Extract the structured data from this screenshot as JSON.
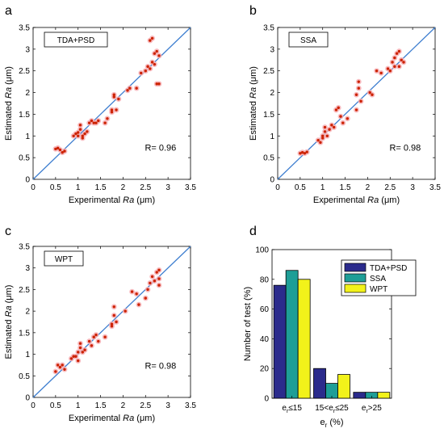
{
  "panels": {
    "a": {
      "letter": "a",
      "legend": "TDA+PSD",
      "r_text": "R= 0.96"
    },
    "b": {
      "letter": "b",
      "legend": "SSA",
      "r_text": "R= 0.98"
    },
    "c": {
      "letter": "c",
      "legend": "WPT",
      "r_text": "R= 0.98"
    },
    "d": {
      "letter": "d"
    }
  },
  "colors": {
    "point_fill": "#cc2200",
    "point_halo": "#f7b0b6",
    "diag_line": "#3f7fd0",
    "bar1": "#2b2b8c",
    "bar2": "#1e9e97",
    "bar3": "#f2f21a"
  },
  "chart_data": [
    {
      "id": "a",
      "type": "scatter",
      "xlabel_prefix": "Experimental",
      "xlabel_italic": "Ra",
      "xlabel_suffix": "(μm)",
      "ylabel_prefix": "Estimated",
      "ylabel_italic": "Ra",
      "ylabel_suffix": "(μm)",
      "xlim": [
        0,
        3.5
      ],
      "ylim": [
        0,
        3.5
      ],
      "xticks": [
        "0",
        "0.5",
        "1",
        "1.5",
        "2",
        "2.5",
        "3",
        "3.5"
      ],
      "yticks": [
        "0",
        "0.5",
        "1",
        "1.5",
        "2",
        "2.5",
        "3",
        "3.5"
      ],
      "legend": "TDA+PSD",
      "annotation": "R= 0.96",
      "points": [
        [
          0.5,
          0.7
        ],
        [
          0.55,
          0.72
        ],
        [
          0.6,
          0.68
        ],
        [
          0.65,
          0.62
        ],
        [
          0.7,
          0.65
        ],
        [
          0.9,
          1.0
        ],
        [
          0.95,
          1.05
        ],
        [
          1.0,
          1.0
        ],
        [
          1.0,
          1.08
        ],
        [
          1.05,
          1.15
        ],
        [
          1.05,
          1.25
        ],
        [
          1.1,
          1.0
        ],
        [
          1.1,
          0.95
        ],
        [
          1.15,
          1.05
        ],
        [
          1.2,
          1.1
        ],
        [
          1.25,
          1.3
        ],
        [
          1.3,
          1.35
        ],
        [
          1.35,
          1.3
        ],
        [
          1.4,
          1.3
        ],
        [
          1.45,
          1.35
        ],
        [
          1.6,
          1.3
        ],
        [
          1.65,
          1.4
        ],
        [
          1.75,
          1.55
        ],
        [
          1.75,
          1.6
        ],
        [
          1.8,
          1.9
        ],
        [
          1.8,
          1.95
        ],
        [
          1.85,
          1.6
        ],
        [
          1.9,
          1.85
        ],
        [
          2.1,
          2.05
        ],
        [
          2.15,
          2.1
        ],
        [
          2.3,
          2.1
        ],
        [
          2.4,
          2.45
        ],
        [
          2.5,
          2.5
        ],
        [
          2.55,
          2.6
        ],
        [
          2.6,
          2.55
        ],
        [
          2.6,
          3.2
        ],
        [
          2.65,
          3.25
        ],
        [
          2.7,
          2.9
        ],
        [
          2.7,
          2.65
        ],
        [
          2.75,
          2.95
        ],
        [
          2.75,
          2.2
        ],
        [
          2.8,
          2.85
        ],
        [
          2.8,
          2.2
        ],
        [
          2.65,
          2.7
        ]
      ]
    },
    {
      "id": "b",
      "type": "scatter",
      "xlabel_prefix": "Experimental",
      "xlabel_italic": "Ra",
      "xlabel_suffix": "(μm)",
      "ylabel_prefix": "Estimated",
      "ylabel_italic": "Ra",
      "ylabel_suffix": "(μm)",
      "xlim": [
        0,
        3.5
      ],
      "ylim": [
        0,
        3.5
      ],
      "xticks": [
        "0",
        "0.5",
        "1",
        "1.5",
        "2",
        "2.5",
        "3",
        "3.5"
      ],
      "yticks": [
        "0",
        "0.5",
        "1",
        "1.5",
        "2",
        "2.5",
        "3",
        "3.5"
      ],
      "legend": "SSA",
      "annotation": "R= 0.98",
      "points": [
        [
          0.5,
          0.6
        ],
        [
          0.55,
          0.62
        ],
        [
          0.6,
          0.6
        ],
        [
          0.65,
          0.63
        ],
        [
          0.9,
          0.9
        ],
        [
          0.95,
          0.85
        ],
        [
          1.0,
          1.0
        ],
        [
          1.0,
          0.95
        ],
        [
          1.05,
          1.1
        ],
        [
          1.05,
          1.2
        ],
        [
          1.1,
          1.0
        ],
        [
          1.15,
          1.15
        ],
        [
          1.2,
          1.25
        ],
        [
          1.25,
          1.2
        ],
        [
          1.3,
          1.6
        ],
        [
          1.35,
          1.65
        ],
        [
          1.4,
          1.45
        ],
        [
          1.45,
          1.3
        ],
        [
          1.55,
          1.4
        ],
        [
          1.75,
          1.6
        ],
        [
          1.75,
          1.95
        ],
        [
          1.8,
          2.25
        ],
        [
          1.8,
          2.1
        ],
        [
          1.85,
          1.8
        ],
        [
          2.05,
          2.0
        ],
        [
          2.1,
          1.95
        ],
        [
          2.2,
          2.5
        ],
        [
          2.3,
          2.45
        ],
        [
          2.45,
          2.55
        ],
        [
          2.5,
          2.5
        ],
        [
          2.55,
          2.7
        ],
        [
          2.6,
          2.8
        ],
        [
          2.65,
          2.9
        ],
        [
          2.7,
          2.95
        ],
        [
          2.7,
          2.6
        ],
        [
          2.75,
          2.75
        ],
        [
          2.8,
          2.7
        ],
        [
          2.6,
          2.6
        ]
      ]
    },
    {
      "id": "c",
      "type": "scatter",
      "xlabel_prefix": "Experimental",
      "xlabel_italic": "Ra",
      "xlabel_suffix": "(μm)",
      "ylabel_prefix": "Estimated",
      "ylabel_italic": "Ra",
      "ylabel_suffix": "(μm)",
      "xlim": [
        0,
        3.5
      ],
      "ylim": [
        0,
        3.5
      ],
      "xticks": [
        "0",
        "0.5",
        "1",
        "1.5",
        "2",
        "2.5",
        "3",
        "3.5"
      ],
      "yticks": [
        "0",
        "0.5",
        "1",
        "1.5",
        "2",
        "2.5",
        "3",
        "3.5"
      ],
      "legend": "WPT",
      "annotation": "R= 0.98",
      "points": [
        [
          0.5,
          0.6
        ],
        [
          0.55,
          0.75
        ],
        [
          0.6,
          0.7
        ],
        [
          0.65,
          0.75
        ],
        [
          0.7,
          0.65
        ],
        [
          0.85,
          0.9
        ],
        [
          0.9,
          0.95
        ],
        [
          0.95,
          0.95
        ],
        [
          1.0,
          0.85
        ],
        [
          1.0,
          1.05
        ],
        [
          1.05,
          1.25
        ],
        [
          1.05,
          1.15
        ],
        [
          1.1,
          1.05
        ],
        [
          1.15,
          1.1
        ],
        [
          1.25,
          1.3
        ],
        [
          1.3,
          1.2
        ],
        [
          1.35,
          1.4
        ],
        [
          1.4,
          1.45
        ],
        [
          1.45,
          1.3
        ],
        [
          1.6,
          1.4
        ],
        [
          1.75,
          1.65
        ],
        [
          1.75,
          1.7
        ],
        [
          1.8,
          1.9
        ],
        [
          1.8,
          2.1
        ],
        [
          1.85,
          1.75
        ],
        [
          2.05,
          2.0
        ],
        [
          2.2,
          2.45
        ],
        [
          2.3,
          2.4
        ],
        [
          2.35,
          2.15
        ],
        [
          2.5,
          2.3
        ],
        [
          2.55,
          2.5
        ],
        [
          2.6,
          2.65
        ],
        [
          2.65,
          2.8
        ],
        [
          2.7,
          2.7
        ],
        [
          2.75,
          2.9
        ],
        [
          2.8,
          2.95
        ],
        [
          2.8,
          2.75
        ],
        [
          2.8,
          2.6
        ]
      ]
    },
    {
      "id": "d",
      "type": "bar",
      "categories": [
        {
          "main": "e",
          "sub": "r",
          "rest": "≤15",
          "lead": ""
        },
        {
          "main": "e",
          "sub": "r",
          "rest": "≤25",
          "lead": "15<"
        },
        {
          "main": "e",
          "sub": "r",
          "rest": ">25",
          "lead": ""
        }
      ],
      "series": [
        {
          "name": "TDA+PSD",
          "values": [
            76,
            20,
            4
          ]
        },
        {
          "name": "SSA",
          "values": [
            86,
            10,
            4
          ]
        },
        {
          "name": "WPT",
          "values": [
            80,
            16,
            4
          ]
        }
      ],
      "ylim": [
        0,
        100
      ],
      "yticks": [
        "0",
        "20",
        "40",
        "60",
        "80",
        "100"
      ],
      "ylabel": "Number of test (%)",
      "xlabel_main": "e",
      "xlabel_sub": "r",
      "xlabel_rest": " (%)"
    }
  ]
}
